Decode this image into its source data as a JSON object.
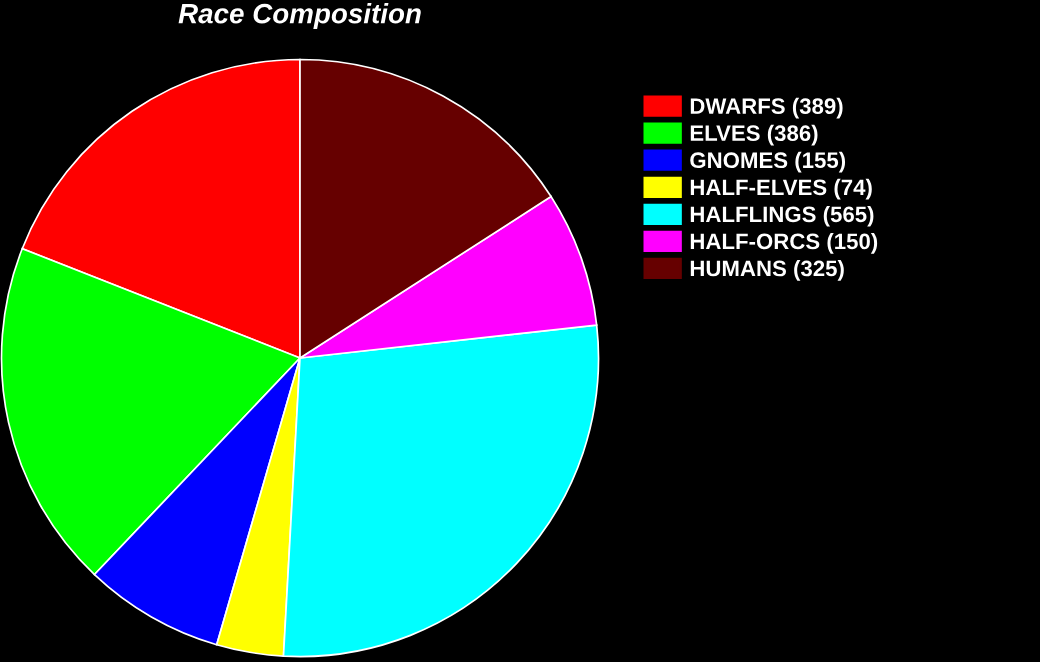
{
  "chart_data": {
    "type": "pie",
    "title": "Race Composition",
    "categories": [
      "DWARFS (389)",
      "ELVES (386)",
      "GNOMES (155)",
      "HALF-ELVES (74)",
      "HALFLINGS (565)",
      "HALF-ORCS (150)",
      "HUMANS (325)"
    ],
    "values": [
      389,
      386,
      155,
      74,
      565,
      150,
      325
    ],
    "colors": [
      "#ff0000",
      "#00ff00",
      "#0000ff",
      "#ffff00",
      "#00ffff",
      "#ff00ff",
      "#660000"
    ],
    "legend": "right"
  }
}
